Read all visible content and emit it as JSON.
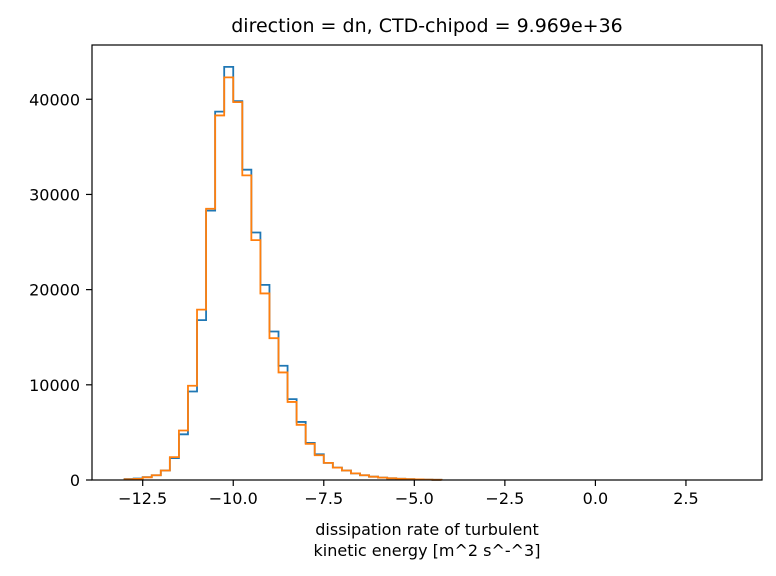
{
  "chart_data": {
    "type": "histogram-step",
    "title": "direction = dn, CTD-chipod = 9.969e+36",
    "xlabel_line1": "dissipation rate of turbulent",
    "xlabel_line2": "kinetic energy [m^2 s^-^3]",
    "ylabel": "",
    "xlim": [
      -13.9,
      4.6
    ],
    "ylim": [
      0,
      45700
    ],
    "xticks": [
      -12.5,
      -10.0,
      -7.5,
      -5.0,
      -2.5,
      0.0,
      2.5
    ],
    "xtick_labels": [
      "−12.5",
      "−10.0",
      "−7.5",
      "−5.0",
      "−2.5",
      "0.0",
      "2.5"
    ],
    "yticks": [
      0,
      10000,
      20000,
      30000,
      40000
    ],
    "ytick_labels": [
      "0",
      "10000",
      "20000",
      "30000",
      "40000"
    ],
    "grid": false,
    "bin_edges": [
      -13.0,
      -12.75,
      -12.5,
      -12.25,
      -12.0,
      -11.75,
      -11.5,
      -11.25,
      -11.0,
      -10.75,
      -10.5,
      -10.25,
      -10.0,
      -9.75,
      -9.5,
      -9.25,
      -9.0,
      -8.75,
      -8.5,
      -8.25,
      -8.0,
      -7.75,
      -7.5,
      -7.25,
      -7.0,
      -6.75,
      -6.5,
      -6.25,
      -6.0,
      -5.75,
      -5.5,
      -5.25,
      -5.0,
      -4.75,
      -4.5,
      -4.25
    ],
    "series": [
      {
        "color": "#1f77b4",
        "values": [
          100,
          150,
          300,
          500,
          1000,
          2300,
          4800,
          9300,
          16800,
          28300,
          38700,
          43400,
          39800,
          32600,
          26000,
          20500,
          15600,
          12000,
          8500,
          6100,
          3900,
          2700,
          1800,
          1300,
          1000,
          700,
          500,
          350,
          250,
          180,
          130,
          90,
          60,
          40,
          20
        ]
      },
      {
        "color": "#ff7f0e",
        "values": [
          80,
          120,
          280,
          500,
          1000,
          2400,
          5200,
          9900,
          17900,
          28500,
          38300,
          42300,
          39700,
          32000,
          25200,
          19600,
          14900,
          11300,
          8200,
          5800,
          3800,
          2600,
          1800,
          1300,
          1000,
          700,
          500,
          350,
          250,
          180,
          130,
          90,
          60,
          40,
          20
        ]
      }
    ]
  }
}
